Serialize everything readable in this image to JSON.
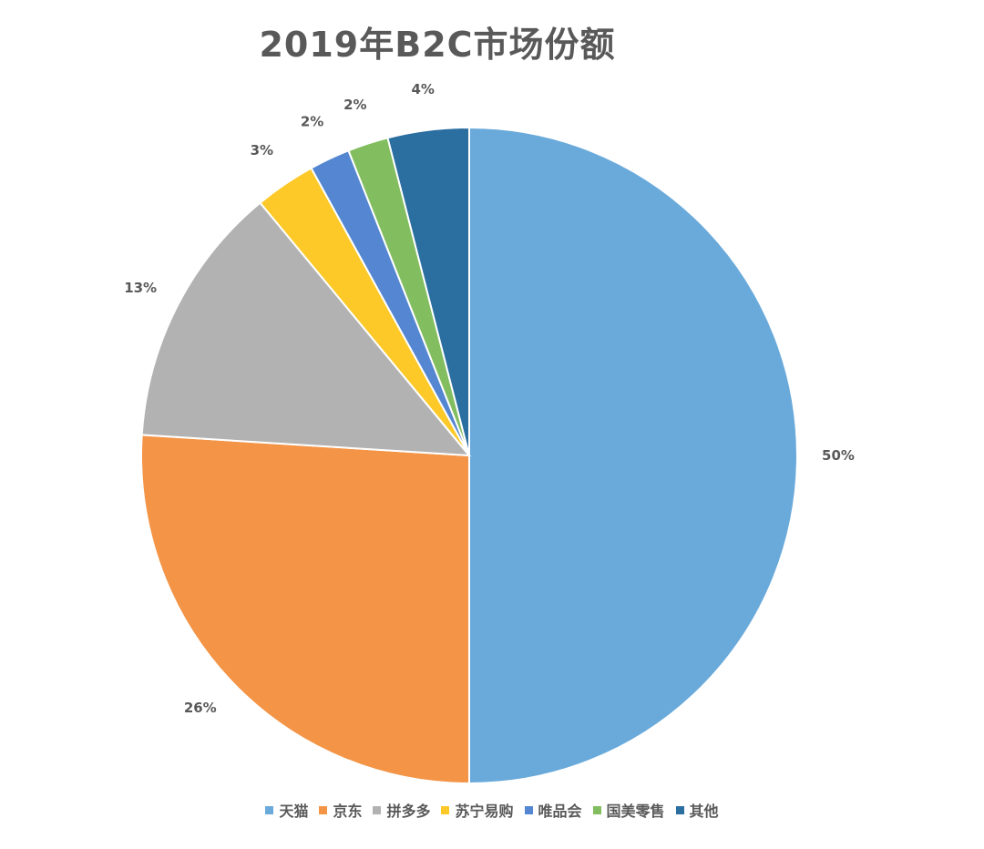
{
  "chart_data": {
    "type": "pie",
    "title": "2019年B2C市场份额",
    "categories": [
      "天猫",
      "京东",
      "拼多多",
      "苏宁易购",
      "唯品会",
      "国美零售",
      "其他"
    ],
    "values": [
      50,
      26,
      13,
      3,
      2,
      2,
      4
    ],
    "labels": [
      "50%",
      "26%",
      "13%",
      "3%",
      "2%",
      "2%",
      "4%"
    ],
    "colors": [
      "#6aaadb",
      "#f39447",
      "#b2b2b2",
      "#fcc928",
      "#5486d1",
      "#82bd5f",
      "#2b6ea0"
    ],
    "legend_position": "bottom",
    "start_angle_deg": 0,
    "direction": "clockwise"
  }
}
